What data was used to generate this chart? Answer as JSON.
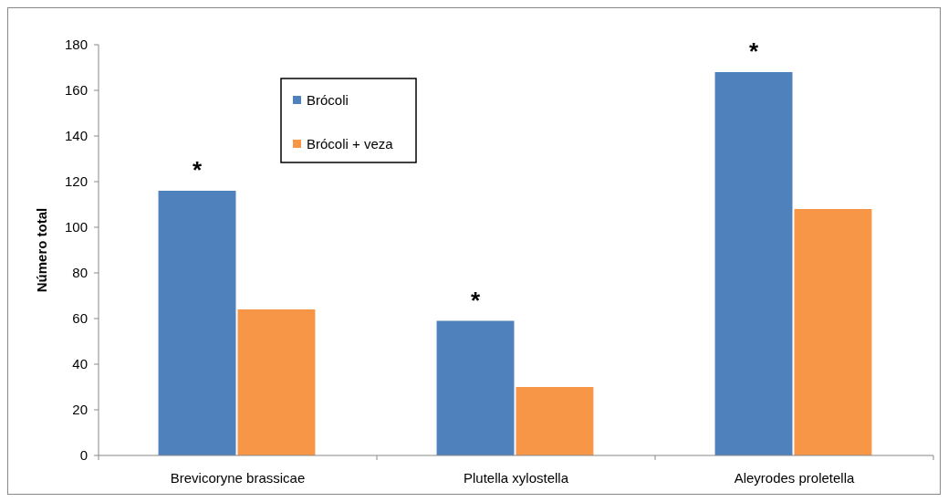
{
  "chart_data": {
    "type": "bar",
    "ylabel": "Número total",
    "categories": [
      "Brevicoryne brassicae",
      "Plutella xylostella",
      "Aleyrodes proletella"
    ],
    "series": [
      {
        "name": "Brócoli",
        "color": "#4f81bd",
        "values": [
          116,
          59,
          168
        ]
      },
      {
        "name": "Brócoli + veza",
        "color": "#f79646",
        "values": [
          64,
          30,
          108
        ]
      }
    ],
    "ylim": [
      0,
      180
    ],
    "yticks": [
      0,
      20,
      40,
      60,
      80,
      100,
      120,
      140,
      160,
      180
    ],
    "legend": "top left",
    "annotations": [
      {
        "text": "*",
        "x": "Brevicoryne brassicae",
        "y": 116
      },
      {
        "text": "*",
        "x": "Plutella xylostella",
        "y": 59
      },
      {
        "text": "*",
        "x": "Aleyrodes proletella",
        "y": 168
      }
    ]
  }
}
